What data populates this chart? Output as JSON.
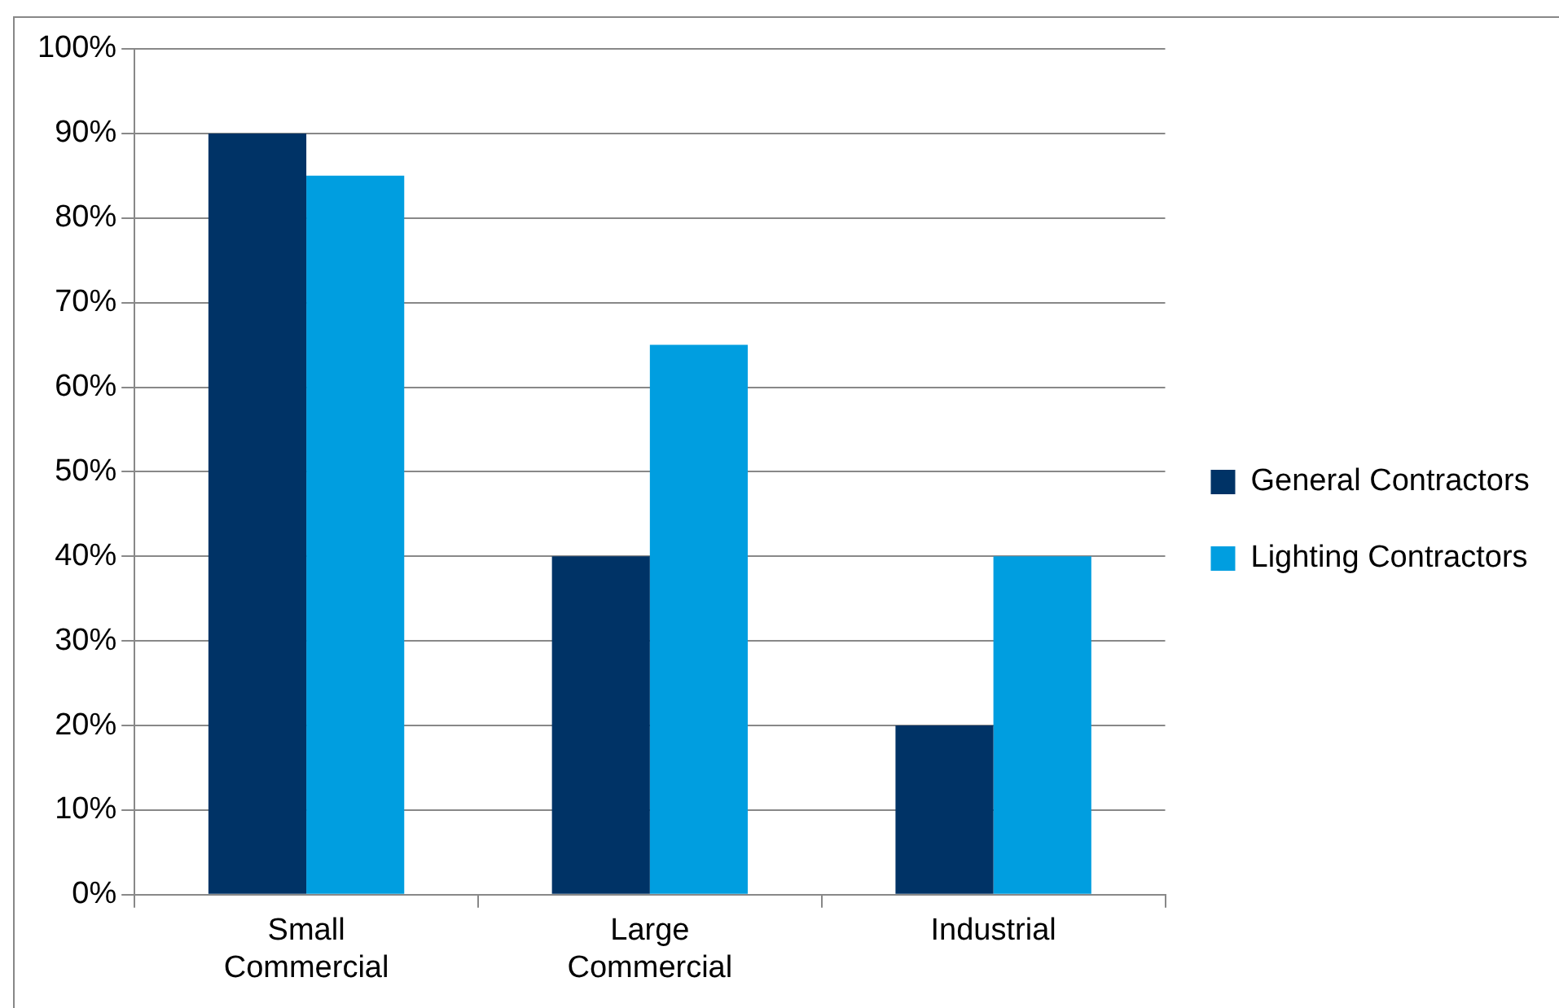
{
  "chart_data": {
    "type": "bar",
    "categories": [
      "Small Commercial",
      "Large Commercial",
      "Industrial"
    ],
    "series": [
      {
        "name": "General Contractors",
        "color": "#003366",
        "values": [
          90,
          40,
          20
        ]
      },
      {
        "name": "Lighting Contractors",
        "color": "#009ee0",
        "values": [
          85,
          65,
          40
        ]
      }
    ],
    "ylim": [
      0,
      100
    ],
    "yticks": [
      {
        "value": 0,
        "label": "0%"
      },
      {
        "value": 10,
        "label": "10%"
      },
      {
        "value": 20,
        "label": "20%"
      },
      {
        "value": 30,
        "label": "30%"
      },
      {
        "value": 40,
        "label": "40%"
      },
      {
        "value": 50,
        "label": "50%"
      },
      {
        "value": 60,
        "label": "60%"
      },
      {
        "value": 70,
        "label": "70%"
      },
      {
        "value": 80,
        "label": "80%"
      },
      {
        "value": 90,
        "label": "90%"
      },
      {
        "value": 100,
        "label": "100%"
      }
    ],
    "grid": "y",
    "legend": "right"
  }
}
